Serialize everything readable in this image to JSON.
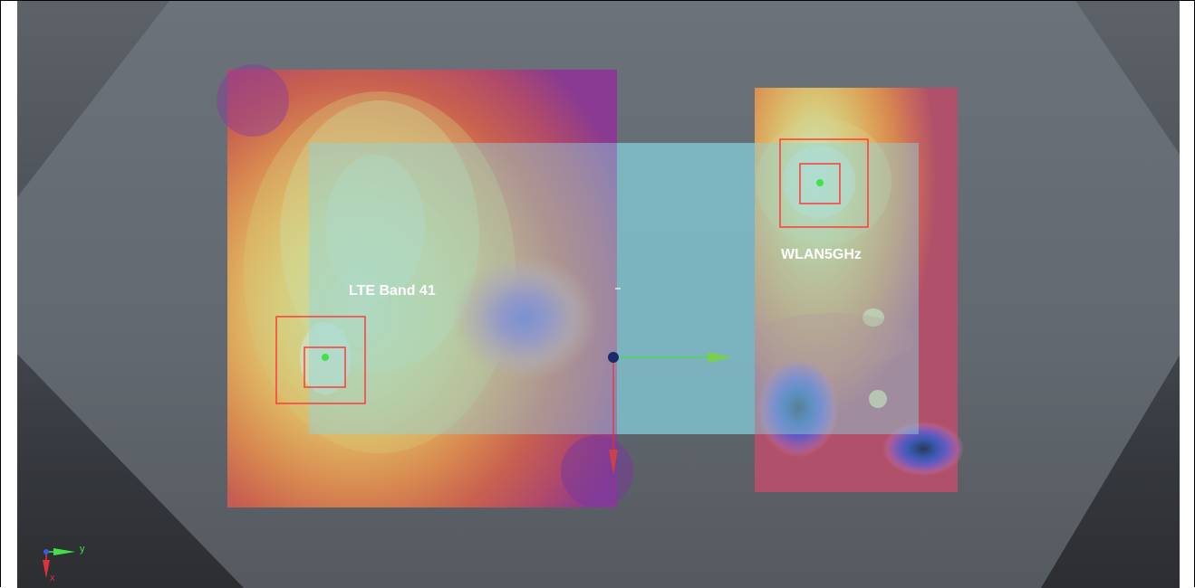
{
  "scene": {
    "background_color": "#4a4f56",
    "housing_color": "#6a7079",
    "substrate_color": "#8fd4e0"
  },
  "heatmaps": [
    {
      "name": "LTE Band 41",
      "label": "LTE Band 41",
      "palette": [
        "#8a3a9a",
        "#b84a6a",
        "#d8704a",
        "#e0a050",
        "#d8c870",
        "#c8dc90",
        "#b8e0c0"
      ]
    },
    {
      "name": "WLAN5GHz",
      "label": "WLAN5GHz",
      "palette": [
        "#2a3a8a",
        "#5a4aaa",
        "#b84a6a",
        "#d8704a",
        "#e0a050",
        "#d8c870",
        "#c8dc90"
      ]
    }
  ],
  "axes_triad": {
    "y_label": "y",
    "x_label": "x",
    "x_color": "#e0323a",
    "y_color": "#44e04a",
    "z_color": "#3a5ae0"
  },
  "origin_triad": {
    "y_arrow_color": "#44e04a",
    "x_arrow_color": "#e0323a",
    "origin_color": "#1a2a6a"
  },
  "highlight_box_color": "#ff3a3a"
}
